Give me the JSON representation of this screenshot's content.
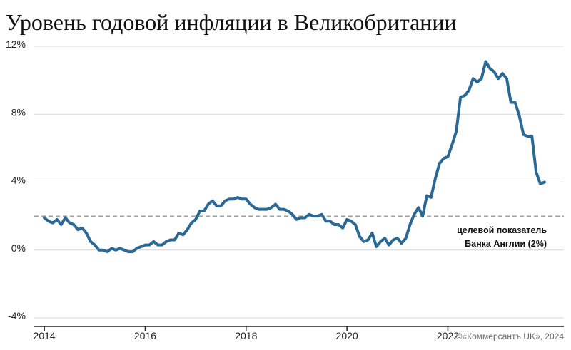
{
  "chart_data": {
    "type": "line",
    "title": "Уровень годовой инфляции в Великобритании",
    "source": "©«Коммерсантъ UK», 2024",
    "reference_line": {
      "value": 2,
      "label": [
        "целевой показатель",
        "Банка Англии (2%)"
      ],
      "color": "#888888"
    },
    "xlim": [
      2013.8,
      2024.3
    ],
    "xticks": [
      2014,
      2016,
      2018,
      2020,
      2022
    ],
    "ylim": [
      -4,
      12
    ],
    "yticks": [
      {
        "value": -4,
        "label": "-4%"
      },
      {
        "value": 0,
        "label": "0%"
      },
      {
        "value": 4,
        "label": "4%"
      },
      {
        "value": 8,
        "label": "8%"
      },
      {
        "value": 12,
        "label": "12%"
      }
    ],
    "grid": true,
    "x": [
      2014,
      2014.083,
      2014.167,
      2014.25,
      2014.333,
      2014.417,
      2014.5,
      2014.583,
      2014.667,
      2014.75,
      2014.833,
      2014.917,
      2015,
      2015.083,
      2015.167,
      2015.25,
      2015.333,
      2015.417,
      2015.5,
      2015.583,
      2015.667,
      2015.75,
      2015.833,
      2015.917,
      2016,
      2016.083,
      2016.167,
      2016.25,
      2016.333,
      2016.417,
      2016.5,
      2016.583,
      2016.667,
      2016.75,
      2016.833,
      2016.917,
      2017,
      2017.083,
      2017.167,
      2017.25,
      2017.333,
      2017.417,
      2017.5,
      2017.583,
      2017.667,
      2017.75,
      2017.833,
      2017.917,
      2018,
      2018.083,
      2018.167,
      2018.25,
      2018.333,
      2018.417,
      2018.5,
      2018.583,
      2018.667,
      2018.75,
      2018.833,
      2018.917,
      2019,
      2019.083,
      2019.167,
      2019.25,
      2019.333,
      2019.417,
      2019.5,
      2019.583,
      2019.667,
      2019.75,
      2019.833,
      2019.917,
      2020,
      2020.083,
      2020.167,
      2020.25,
      2020.333,
      2020.417,
      2020.5,
      2020.583,
      2020.667,
      2020.75,
      2020.833,
      2020.917,
      2021,
      2021.083,
      2021.167,
      2021.25,
      2021.333,
      2021.417,
      2021.5,
      2021.583,
      2021.667,
      2021.75,
      2021.833,
      2021.917,
      2022,
      2022.083,
      2022.167,
      2022.25,
      2022.333,
      2022.417,
      2022.5,
      2022.583,
      2022.667,
      2022.75,
      2022.833,
      2022.917,
      2023,
      2023.083,
      2023.167,
      2023.25,
      2023.333,
      2023.417,
      2023.5,
      2023.583,
      2023.667,
      2023.75,
      2023.833,
      2023.917
    ],
    "series": [
      {
        "color": "#2a6896",
        "values": [
          1.9,
          1.7,
          1.6,
          1.8,
          1.5,
          1.9,
          1.6,
          1.5,
          1.2,
          1.3,
          1.0,
          0.5,
          0.3,
          0.0,
          0.0,
          -0.1,
          0.1,
          0.0,
          0.1,
          0.0,
          -0.1,
          -0.1,
          0.1,
          0.2,
          0.3,
          0.3,
          0.5,
          0.3,
          0.3,
          0.5,
          0.6,
          0.6,
          1.0,
          0.9,
          1.2,
          1.6,
          1.8,
          2.3,
          2.3,
          2.7,
          2.9,
          2.6,
          2.6,
          2.9,
          3.0,
          3.0,
          3.1,
          3.0,
          3.0,
          2.7,
          2.5,
          2.4,
          2.4,
          2.4,
          2.5,
          2.7,
          2.4,
          2.4,
          2.3,
          2.1,
          1.8,
          1.9,
          1.9,
          2.1,
          2.0,
          2.0,
          2.1,
          1.7,
          1.7,
          1.5,
          1.5,
          1.3,
          1.8,
          1.7,
          1.5,
          0.8,
          0.5,
          0.6,
          1.0,
          0.2,
          0.5,
          0.7,
          0.3,
          0.6,
          0.7,
          0.4,
          0.7,
          1.5,
          2.1,
          2.5,
          2.0,
          3.2,
          3.1,
          4.2,
          5.1,
          5.4,
          5.5,
          6.2,
          7.0,
          9.0,
          9.1,
          9.4,
          10.1,
          9.9,
          10.1,
          11.1,
          10.7,
          10.5,
          10.1,
          10.4,
          10.1,
          8.7,
          8.7,
          7.9,
          6.8,
          6.7,
          6.7,
          4.6,
          3.9,
          4.0
        ]
      }
    ]
  }
}
